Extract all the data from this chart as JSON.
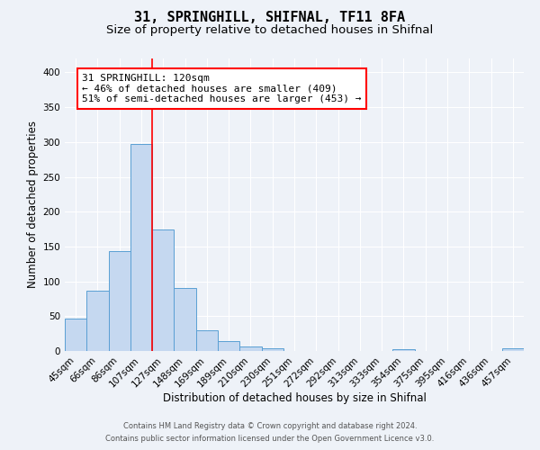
{
  "title": "31, SPRINGHILL, SHIFNAL, TF11 8FA",
  "subtitle": "Size of property relative to detached houses in Shifnal",
  "xlabel": "Distribution of detached houses by size in Shifnal",
  "ylabel": "Number of detached properties",
  "footer_line1": "Contains HM Land Registry data © Crown copyright and database right 2024.",
  "footer_line2": "Contains public sector information licensed under the Open Government Licence v3.0.",
  "bin_labels": [
    "45sqm",
    "66sqm",
    "86sqm",
    "107sqm",
    "127sqm",
    "148sqm",
    "169sqm",
    "189sqm",
    "210sqm",
    "230sqm",
    "251sqm",
    "272sqm",
    "292sqm",
    "313sqm",
    "333sqm",
    "354sqm",
    "375sqm",
    "395sqm",
    "416sqm",
    "436sqm",
    "457sqm"
  ],
  "bin_values": [
    47,
    86,
    144,
    297,
    175,
    91,
    30,
    14,
    7,
    4,
    0,
    0,
    0,
    0,
    0,
    2,
    0,
    0,
    0,
    0,
    4
  ],
  "bar_color": "#c5d8f0",
  "bar_edge_color": "#5a9fd4",
  "red_line_x": 4.0,
  "annotation_title": "31 SPRINGHILL: 120sqm",
  "annotation_line1": "← 46% of detached houses are smaller (409)",
  "annotation_line2": "51% of semi-detached houses are larger (453) →",
  "ylim": [
    0,
    420
  ],
  "yticks": [
    0,
    50,
    100,
    150,
    200,
    250,
    300,
    350,
    400
  ],
  "background_color": "#eef2f8",
  "grid_color": "#ffffff",
  "title_fontsize": 11,
  "subtitle_fontsize": 9.5,
  "axis_label_fontsize": 8.5,
  "tick_fontsize": 7.5,
  "annotation_fontsize": 8
}
